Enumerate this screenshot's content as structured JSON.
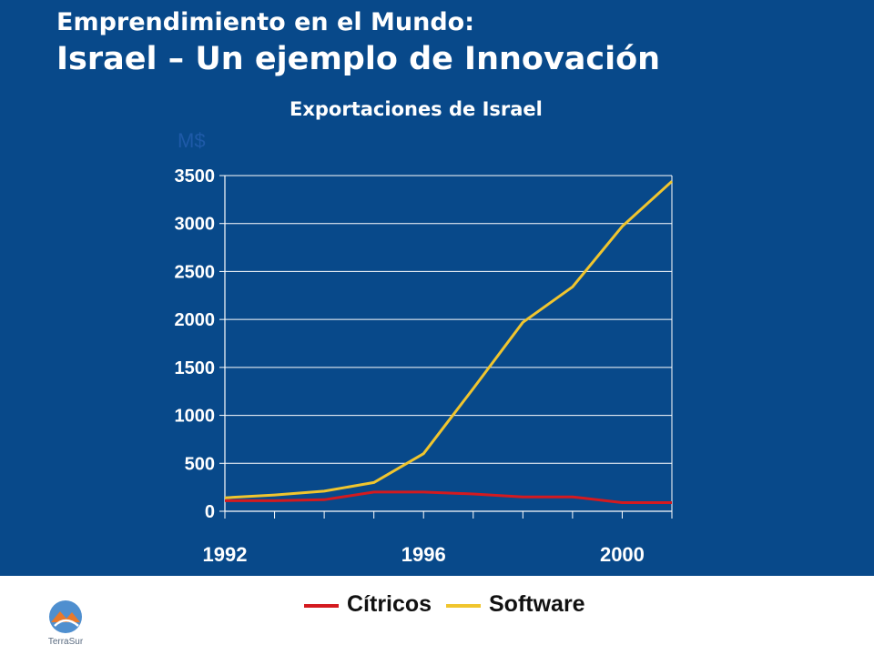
{
  "header": {
    "title_line1": "Emprendimiento en el Mundo:",
    "title_line2": "Israel – Un ejemplo de Innovación"
  },
  "chart_data": {
    "type": "line",
    "title": "Exportaciones de Israel",
    "unit_label": "M$",
    "x": [
      1992,
      1993,
      1994,
      1995,
      1996,
      1997,
      1998,
      1999,
      2000,
      2001
    ],
    "xticks": [
      "1992",
      "1996",
      "2000"
    ],
    "ylim": [
      0,
      3500
    ],
    "yticks": [
      0,
      500,
      1000,
      1500,
      2000,
      2500,
      3000,
      3500
    ],
    "grid": true,
    "legend_position": "bottom",
    "series": [
      {
        "name": "Cítricos",
        "color": "#d41a1f",
        "values": [
          110,
          110,
          120,
          200,
          200,
          180,
          150,
          150,
          90,
          90
        ]
      },
      {
        "name": "Software",
        "color": "#f0c52e",
        "values": [
          140,
          170,
          210,
          300,
          600,
          1280,
          1970,
          2340,
          2970,
          3440
        ]
      }
    ]
  },
  "logo": {
    "text": "TerraSur",
    "icon": "terrasur-logo-icon"
  }
}
